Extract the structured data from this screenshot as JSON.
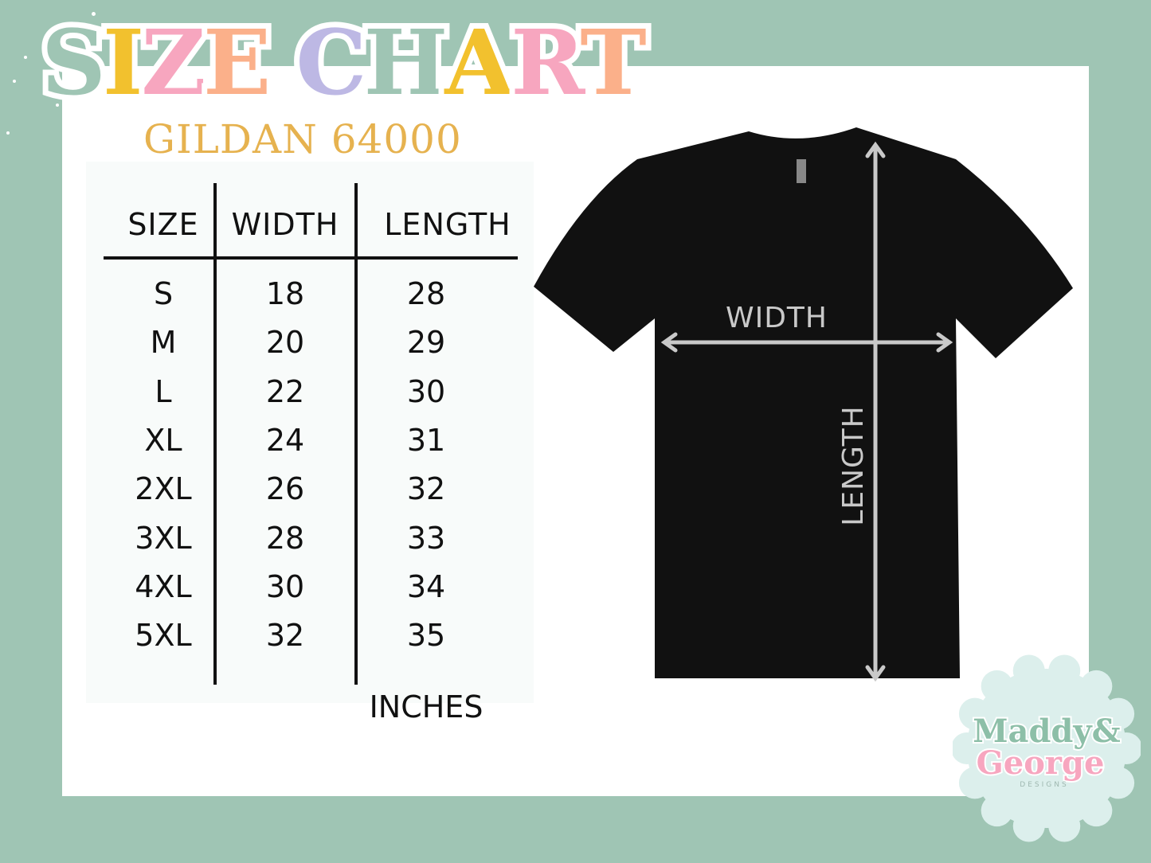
{
  "title": {
    "letters": [
      "S",
      "I",
      "Z",
      "E",
      " ",
      "C",
      "H",
      "A",
      "R",
      "T"
    ],
    "text": "SIZE CHART"
  },
  "colors": {
    "background": "#9fc5b4",
    "subtitle": "#e6b24f",
    "letters": [
      "#9fc5b4",
      "#f2c12e",
      "#f7a6bf",
      "#fbb08a",
      "#fff",
      "#bdb8e4",
      "#9fc5b4",
      "#f2c12e",
      "#f7a6bf",
      "#fbb08a"
    ],
    "shirt": "#111111",
    "arrows": "#c9c9c9"
  },
  "subtitle": "GILDAN 64000",
  "table": {
    "headers": [
      "SIZE",
      "WIDTH",
      "LENGTH"
    ],
    "rows": [
      [
        "S",
        "18",
        "28"
      ],
      [
        "M",
        "20",
        "29"
      ],
      [
        "L",
        "22",
        "30"
      ],
      [
        "XL",
        "24",
        "31"
      ],
      [
        "2XL",
        "26",
        "32"
      ],
      [
        "3XL",
        "28",
        "33"
      ],
      [
        "4XL",
        "30",
        "34"
      ],
      [
        "5XL",
        "32",
        "35"
      ]
    ],
    "unit": "INCHES"
  },
  "diagram": {
    "width_label": "WIDTH",
    "length_label": "LENGTH"
  },
  "logo": {
    "line1": "Maddy&",
    "line2": "George",
    "line3": "DESIGNS"
  }
}
